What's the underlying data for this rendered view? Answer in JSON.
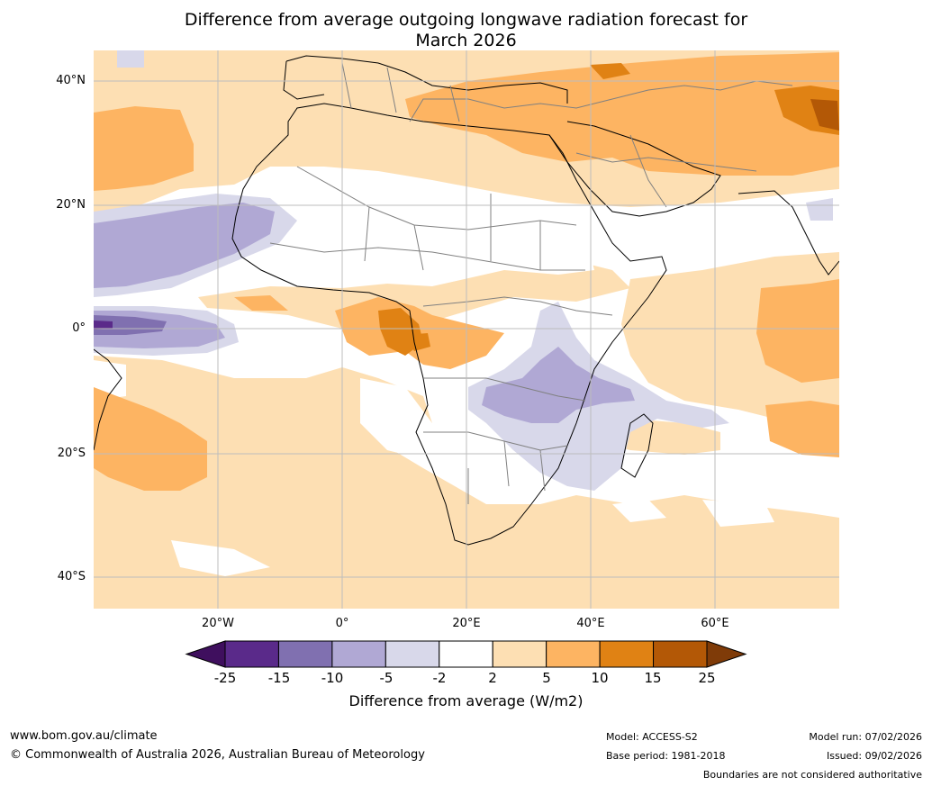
{
  "title_line1": "Difference from average outgoing longwave radiation forecast for",
  "title_line2": "March 2026",
  "lat_labels": [
    "40°N",
    "20°N",
    "0°",
    "20°S",
    "40°S"
  ],
  "lon_labels": [
    "20°W",
    "0°",
    "20°E",
    "40°E",
    "60°E"
  ],
  "colorbar": {
    "ticks": [
      "-25",
      "-15",
      "-10",
      "-5",
      "-2",
      "2",
      "5",
      "10",
      "15",
      "25"
    ],
    "colors": [
      "#3f0f5e",
      "#5a2a8a",
      "#8070b0",
      "#b0a8d4",
      "#d8d8ea",
      "#ffffff",
      "#fddfb3",
      "#fdb462",
      "#e08214",
      "#b35806",
      "#7f3b08"
    ],
    "label": "Difference from average (W/m2)"
  },
  "footer": {
    "site": "www.bom.gov.au/climate",
    "copyright": "© Commonwealth of Australia 2026, Australian Bureau of Meteorology",
    "model": "Model: ACCESS-S2",
    "base_period": "Base period: 1981-2018",
    "model_run": "Model run: 07/02/2026",
    "issued": "Issued: 09/02/2026",
    "disclaimer": "Boundaries are not considered authoritative"
  }
}
